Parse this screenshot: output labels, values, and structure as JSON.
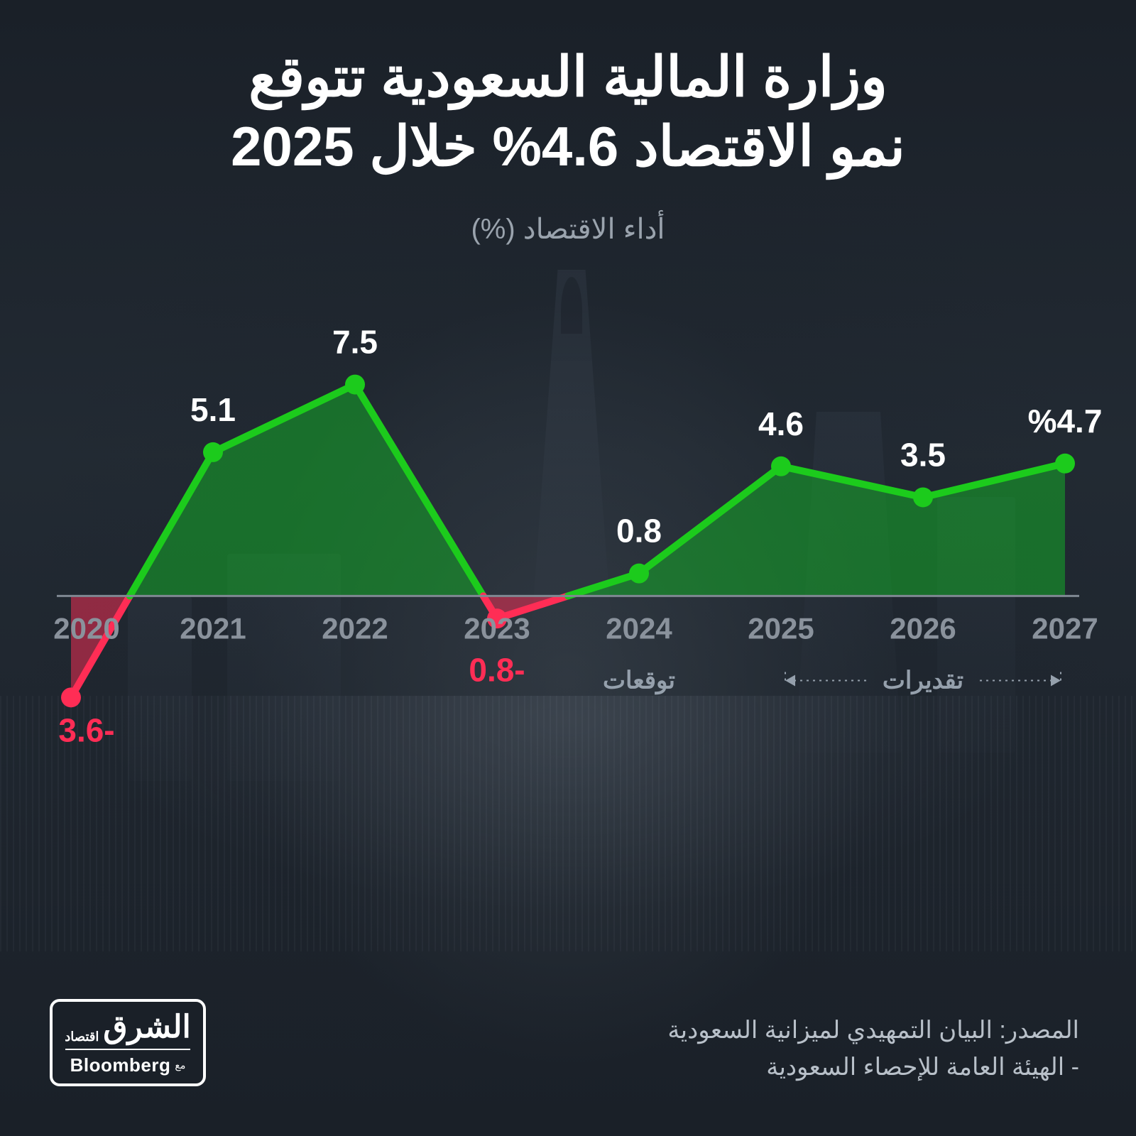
{
  "title": {
    "line1": "وزارة المالية السعودية تتوقع",
    "line2": "نمو الاقتصاد 4.6% خلال 2025",
    "fontsize": 78,
    "color": "#ffffff"
  },
  "subtitle": {
    "text": "أداء الاقتصاد (%)",
    "fontsize": 40,
    "color": "#9aa3ad"
  },
  "chart": {
    "type": "area-line",
    "years": [
      "2020",
      "2021",
      "2022",
      "2023",
      "2024",
      "2025",
      "2026",
      "2027"
    ],
    "values": [
      -3.6,
      5.1,
      7.5,
      -0.8,
      0.8,
      4.6,
      3.5,
      4.7
    ],
    "labels": [
      "3.6-",
      "5.1",
      "7.5",
      "0.8-",
      "0.8",
      "4.6",
      "3.5",
      "%4.7"
    ],
    "year_dx": [
      22,
      0,
      0,
      0,
      0,
      0,
      0,
      0
    ],
    "label_dx": [
      22,
      0,
      0,
      0,
      0,
      0,
      0,
      0
    ],
    "ymin": -4.8,
    "ymax": 8.8,
    "colors": {
      "positive_line": "#1ccb1c",
      "negative_line": "#ff2d55",
      "positive_fill": "rgba(20,170,40,0.55)",
      "negative_fill": "rgba(255,45,85,0.50)",
      "axis": "#7f8892",
      "year_label": "#8a929c",
      "value_label_pos": "#ffffff",
      "value_label_neg": "#ff2d55",
      "annotation": "#95a0ac"
    },
    "line_width": 10,
    "marker_radius": 14,
    "year_fontsize": 42,
    "value_fontsize": 46,
    "year_y_offset": 60,
    "label_gap": 44,
    "annotations": {
      "forecast": {
        "text": "توقعات",
        "at_year": "2024",
        "fontsize": 34
      },
      "estimates": {
        "text": "تقديرات",
        "from_year": "2025",
        "to_year": "2027",
        "fontsize": 34
      }
    }
  },
  "source": {
    "line1": "المصدر: البيان التمهيدي لميزانية السعودية",
    "line2": "- الهيئة العامة للإحصاء السعودية",
    "fontsize": 34,
    "color": "#b8c0c9"
  },
  "logo": {
    "brand_main": "الشرق",
    "brand_sub": "اقتصاد",
    "partner": "Bloomberg",
    "partner_prefix": "مع"
  }
}
